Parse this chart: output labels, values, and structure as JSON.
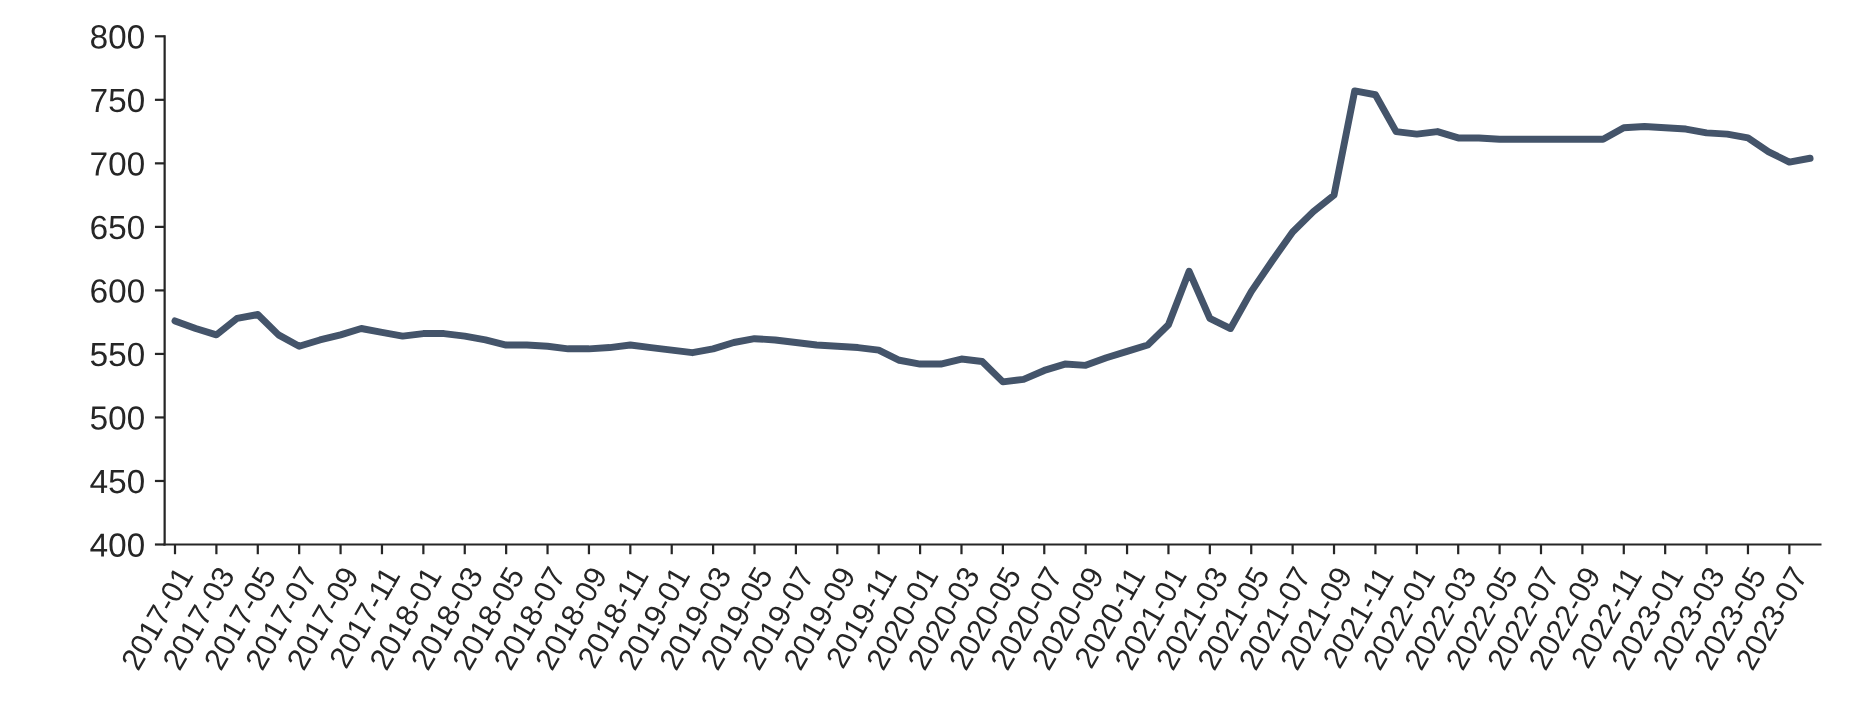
{
  "chart_data": {
    "type": "line",
    "categories": [
      "2017-01",
      null,
      "2017-03",
      null,
      "2017-05",
      null,
      "2017-07",
      null,
      "2017-09",
      null,
      "2017-11",
      null,
      "2018-01",
      null,
      "2018-03",
      null,
      "2018-05",
      null,
      "2018-07",
      null,
      "2018-09",
      null,
      "2018-11",
      null,
      "2019-01",
      null,
      "2019-03",
      null,
      "2019-05",
      null,
      "2019-07",
      null,
      "2019-09",
      null,
      "2019-11",
      null,
      "2020-01",
      null,
      "2020-03",
      null,
      "2020-05",
      null,
      "2020-07",
      null,
      "2020-09",
      null,
      "2020-11",
      null,
      "2021-01",
      null,
      "2021-03",
      null,
      "2021-05",
      null,
      "2021-07",
      null,
      "2021-09",
      null,
      "2021-11",
      null,
      "2022-01",
      null,
      "2022-03",
      null,
      "2022-05",
      null,
      "2022-07",
      null,
      "2022-09",
      null,
      "2022-11",
      null,
      "2023-01",
      null,
      "2023-03",
      null,
      "2023-05",
      null,
      "2023-07",
      null
    ],
    "series": [
      {
        "color": "#44546a",
        "values": [
          576,
          570,
          565,
          578,
          581,
          565,
          556,
          561,
          565,
          570,
          567,
          564,
          566,
          566,
          564,
          561,
          557,
          557,
          556,
          554,
          554,
          555,
          557,
          555,
          553,
          551,
          554,
          559,
          562,
          561,
          559,
          557,
          556,
          555,
          553,
          545,
          542,
          542,
          546,
          544,
          528,
          530,
          537,
          542,
          541,
          547,
          552,
          557,
          573,
          615,
          578,
          570,
          599,
          623,
          646,
          662,
          675,
          757,
          754,
          725,
          723,
          725,
          720,
          720,
          719,
          719,
          719,
          719,
          719,
          719,
          728,
          729,
          728,
          727,
          724,
          723,
          720,
          709,
          701,
          704
        ]
      }
    ],
    "ylim": [
      400,
      800
    ],
    "yticks": [
      400,
      450,
      500,
      550,
      600,
      650,
      700,
      750,
      800
    ],
    "grid": false,
    "legend": false,
    "marker": "none",
    "line_style": "solid"
  }
}
